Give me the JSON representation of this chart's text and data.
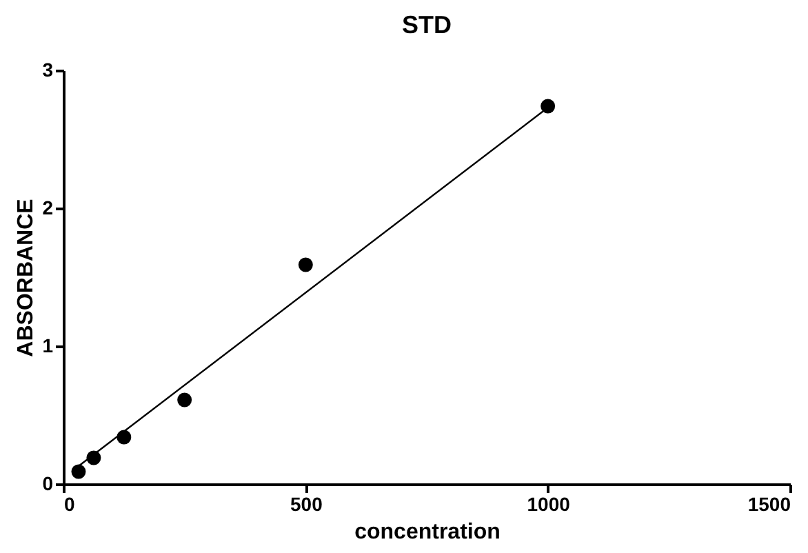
{
  "chart_data": {
    "type": "scatter",
    "title": "STD",
    "xlabel": "concentration",
    "ylabel": "ABSORBANCE",
    "xlim": [
      0,
      1500
    ],
    "xticks": [
      0,
      500,
      1000,
      1500
    ],
    "ylim": [
      0,
      3
    ],
    "yticks": [
      0,
      1,
      2,
      3
    ],
    "grid": false,
    "marker": "circle",
    "series": [
      {
        "color": "#000000",
        "x": [
          31.25,
          62.5,
          125,
          250,
          500,
          1000
        ],
        "values": [
          0.09,
          0.19,
          0.34,
          0.61,
          1.59,
          2.74
        ]
      },
      {
        "type": "line",
        "color": "#000000",
        "x": [
          31.25,
          1000
        ],
        "values": [
          0.13,
          2.73
        ],
        "marker": "none",
        "line_style": "solid"
      }
    ]
  }
}
